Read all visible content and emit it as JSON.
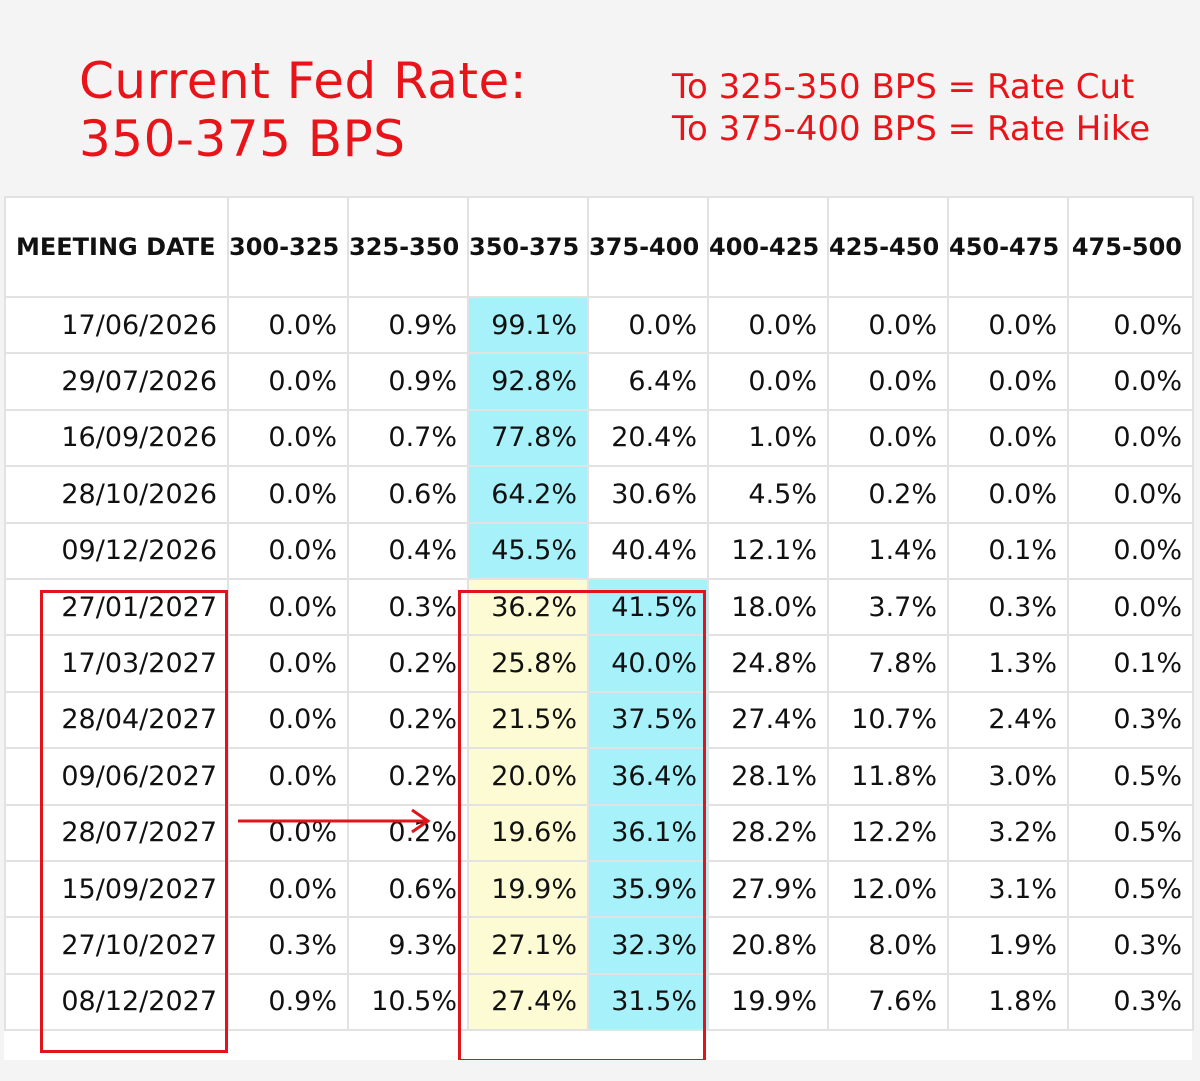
{
  "header": {
    "title_line1": "Current Fed Rate:",
    "title_line2": "350-375 BPS",
    "legend_line1": "To 325-350 BPS = Rate Cut",
    "legend_line2": "To 375-400 BPS = Rate Hike"
  },
  "colors": {
    "annotation": "#e8141a",
    "current_rate_highlight": "#a6f1fa",
    "future_current_highlight": "#fcfbd4"
  },
  "chart_data": {
    "type": "table",
    "columns": [
      "MEETING DATE",
      "300-325",
      "325-350",
      "350-375",
      "375-400",
      "400-425",
      "425-450",
      "450-475",
      "475-500"
    ],
    "rows": [
      [
        "17/06/2026",
        "0.0%",
        "0.9%",
        "99.1%",
        "0.0%",
        "0.0%",
        "0.0%",
        "0.0%",
        "0.0%"
      ],
      [
        "29/07/2026",
        "0.0%",
        "0.9%",
        "92.8%",
        "6.4%",
        "0.0%",
        "0.0%",
        "0.0%",
        "0.0%"
      ],
      [
        "16/09/2026",
        "0.0%",
        "0.7%",
        "77.8%",
        "20.4%",
        "1.0%",
        "0.0%",
        "0.0%",
        "0.0%"
      ],
      [
        "28/10/2026",
        "0.0%",
        "0.6%",
        "64.2%",
        "30.6%",
        "4.5%",
        "0.2%",
        "0.0%",
        "0.0%"
      ],
      [
        "09/12/2026",
        "0.0%",
        "0.4%",
        "45.5%",
        "40.4%",
        "12.1%",
        "1.4%",
        "0.1%",
        "0.0%"
      ],
      [
        "27/01/2027",
        "0.0%",
        "0.3%",
        "36.2%",
        "41.5%",
        "18.0%",
        "3.7%",
        "0.3%",
        "0.0%"
      ],
      [
        "17/03/2027",
        "0.0%",
        "0.2%",
        "25.8%",
        "40.0%",
        "24.8%",
        "7.8%",
        "1.3%",
        "0.1%"
      ],
      [
        "28/04/2027",
        "0.0%",
        "0.2%",
        "21.5%",
        "37.5%",
        "27.4%",
        "10.7%",
        "2.4%",
        "0.3%"
      ],
      [
        "09/06/2027",
        "0.0%",
        "0.2%",
        "20.0%",
        "36.4%",
        "28.1%",
        "11.8%",
        "3.0%",
        "0.5%"
      ],
      [
        "28/07/2027",
        "0.0%",
        "0.2%",
        "19.6%",
        "36.1%",
        "28.2%",
        "12.2%",
        "3.2%",
        "0.5%"
      ],
      [
        "15/09/2027",
        "0.0%",
        "0.6%",
        "19.9%",
        "35.9%",
        "27.9%",
        "12.0%",
        "3.1%",
        "0.5%"
      ],
      [
        "27/10/2027",
        "0.3%",
        "9.3%",
        "27.1%",
        "32.3%",
        "20.8%",
        "8.0%",
        "1.9%",
        "0.3%"
      ],
      [
        "08/12/2027",
        "0.9%",
        "10.5%",
        "27.4%",
        "31.5%",
        "19.9%",
        "7.6%",
        "1.8%",
        "0.3%"
      ]
    ],
    "highlights": {
      "cyan_cells": [
        [
          0,
          3
        ],
        [
          1,
          3
        ],
        [
          2,
          3
        ],
        [
          3,
          3
        ],
        [
          4,
          3
        ],
        [
          5,
          4
        ],
        [
          6,
          4
        ],
        [
          7,
          4
        ],
        [
          8,
          4
        ],
        [
          9,
          4
        ],
        [
          10,
          4
        ],
        [
          11,
          4
        ],
        [
          12,
          4
        ]
      ],
      "yellow_cells": [
        [
          5,
          3
        ],
        [
          6,
          3
        ],
        [
          7,
          3
        ],
        [
          8,
          3
        ],
        [
          9,
          3
        ],
        [
          10,
          3
        ],
        [
          11,
          3
        ],
        [
          12,
          3
        ]
      ],
      "annotation_box_rows": [
        5,
        12
      ]
    }
  }
}
